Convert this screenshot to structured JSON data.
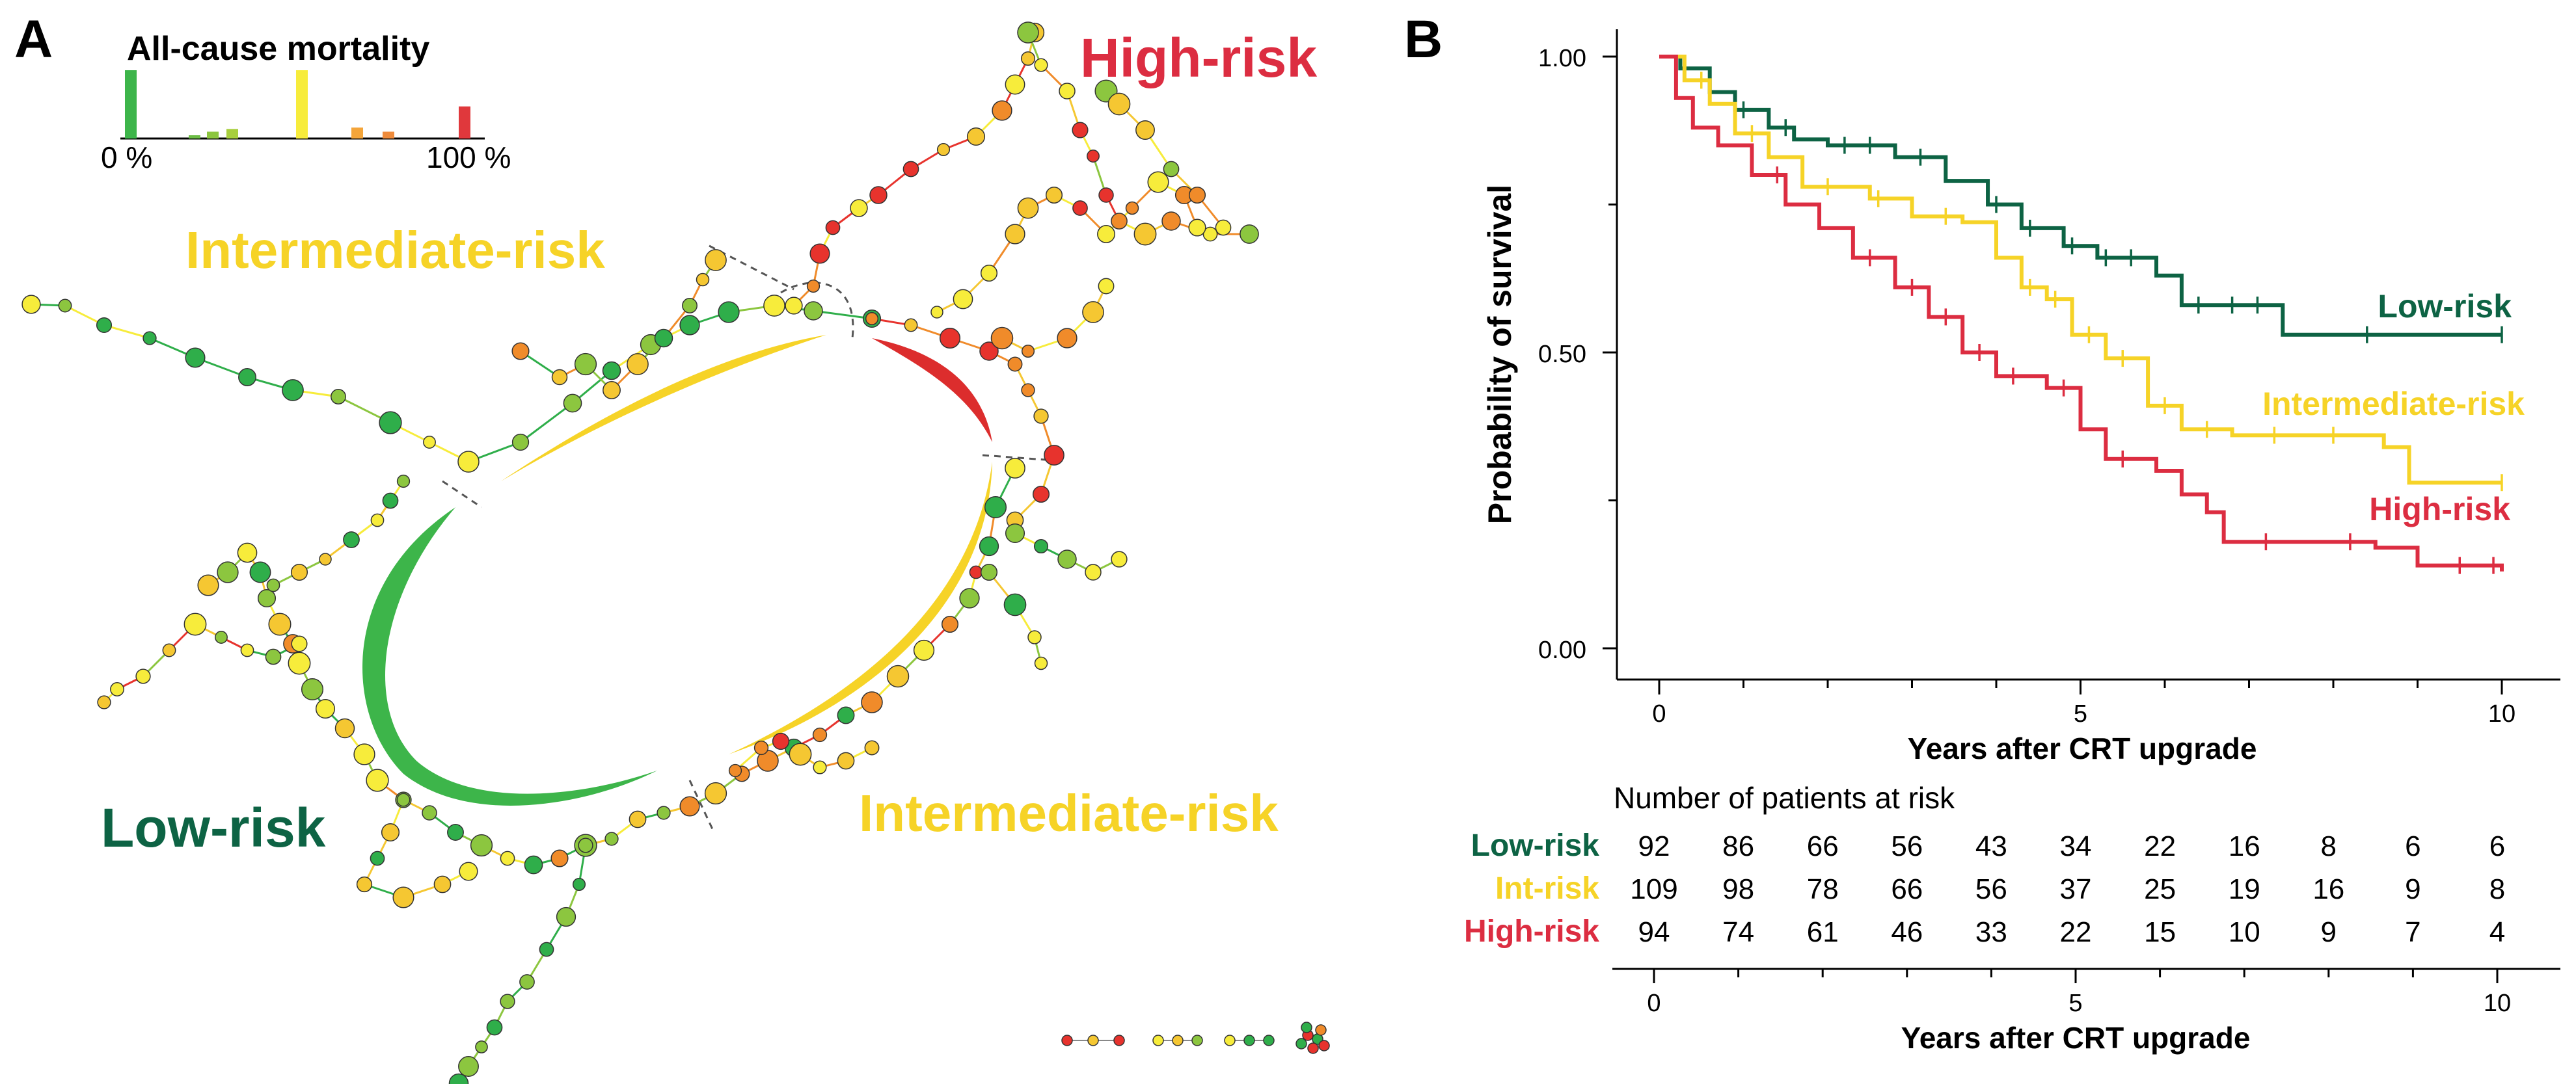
{
  "panel_a": {
    "letter": "A",
    "legend": {
      "title": "All-cause mortality",
      "min_label": "0 %",
      "max_label": "100 %",
      "histogram": [
        {
          "value": 1.0,
          "color": "#3db54a"
        },
        {
          "value": 0.03,
          "color": "#6cbd45"
        },
        {
          "value": 0.1,
          "color": "#8cc63f"
        },
        {
          "value": 0.14,
          "color": "#a8cf3e"
        },
        {
          "value": 1.0,
          "color": "#f7ec3b"
        },
        {
          "value": 0.16,
          "color": "#f4a53a"
        },
        {
          "value": 0.1,
          "color": "#ef8b3b"
        },
        {
          "value": 0.47,
          "color": "#e0383c"
        }
      ]
    },
    "labels": {
      "high": "High-risk",
      "intermediate_top": "Intermediate-risk",
      "intermediate_bottom": "Intermediate-risk",
      "low": "Low-risk"
    },
    "colors": {
      "high": "#dc2d41",
      "intermediate": "#f6d327",
      "low": "#0d6344",
      "arc_low": "#3db54a",
      "arc_intermediate": "#f6d327",
      "arc_high": "#dc2d2d",
      "node_palette": [
        "#2fae4a",
        "#8cc63f",
        "#f7ec3b",
        "#f5c732",
        "#f08b2a",
        "#e7332d"
      ]
    }
  },
  "panel_b": {
    "letter": "B",
    "risk_table_title": "Number of patients at risk",
    "chart_data": {
      "type": "line",
      "xlabel": "Years after CRT upgrade",
      "ylabel": "Probability of survival",
      "xlim": [
        0,
        10
      ],
      "ylim": [
        0,
        1
      ],
      "x_ticks": [
        0,
        5,
        10
      ],
      "y_ticks": [
        "0.00",
        "0.50",
        "1.00"
      ],
      "series": [
        {
          "name": "Low-risk",
          "color": "#0d6344",
          "points": [
            [
              0,
              1.0
            ],
            [
              0.25,
              0.98
            ],
            [
              0.6,
              0.94
            ],
            [
              0.9,
              0.91
            ],
            [
              1.3,
              0.88
            ],
            [
              1.6,
              0.86
            ],
            [
              2.0,
              0.85
            ],
            [
              2.8,
              0.83
            ],
            [
              3.4,
              0.79
            ],
            [
              3.9,
              0.75
            ],
            [
              4.3,
              0.71
            ],
            [
              4.8,
              0.68
            ],
            [
              5.2,
              0.66
            ],
            [
              5.9,
              0.63
            ],
            [
              6.2,
              0.58
            ],
            [
              7.0,
              0.58
            ],
            [
              7.4,
              0.53
            ],
            [
              10.0,
              0.53
            ]
          ],
          "censor_x": [
            1.0,
            1.5,
            2.2,
            2.5,
            3.1,
            4.0,
            4.4,
            4.9,
            5.3,
            5.6,
            6.4,
            6.8,
            7.1,
            8.4,
            10.0
          ]
        },
        {
          "name": "Intermediate-risk",
          "color": "#f6d327",
          "points": [
            [
              0,
              1.0
            ],
            [
              0.3,
              0.96
            ],
            [
              0.6,
              0.92
            ],
            [
              0.9,
              0.87
            ],
            [
              1.3,
              0.83
            ],
            [
              1.7,
              0.78
            ],
            [
              2.5,
              0.76
            ],
            [
              3.0,
              0.73
            ],
            [
              3.6,
              0.72
            ],
            [
              4.0,
              0.66
            ],
            [
              4.3,
              0.61
            ],
            [
              4.6,
              0.59
            ],
            [
              4.9,
              0.53
            ],
            [
              5.3,
              0.49
            ],
            [
              5.8,
              0.41
            ],
            [
              6.2,
              0.37
            ],
            [
              6.8,
              0.36
            ],
            [
              8.6,
              0.34
            ],
            [
              8.9,
              0.28
            ],
            [
              10.0,
              0.28
            ]
          ],
          "censor_x": [
            0.5,
            1.1,
            2.0,
            2.6,
            3.4,
            4.4,
            4.7,
            5.1,
            5.5,
            6.0,
            6.5,
            7.3,
            8.0,
            10.0
          ]
        },
        {
          "name": "High-risk",
          "color": "#dc2d41",
          "points": [
            [
              0,
              1.0
            ],
            [
              0.2,
              0.93
            ],
            [
              0.4,
              0.88
            ],
            [
              0.7,
              0.85
            ],
            [
              1.1,
              0.8
            ],
            [
              1.5,
              0.75
            ],
            [
              1.9,
              0.71
            ],
            [
              2.3,
              0.66
            ],
            [
              2.8,
              0.61
            ],
            [
              3.2,
              0.56
            ],
            [
              3.6,
              0.5
            ],
            [
              4.0,
              0.46
            ],
            [
              4.6,
              0.44
            ],
            [
              5.0,
              0.37
            ],
            [
              5.3,
              0.32
            ],
            [
              5.9,
              0.3
            ],
            [
              6.2,
              0.26
            ],
            [
              6.5,
              0.23
            ],
            [
              6.7,
              0.18
            ],
            [
              8.5,
              0.17
            ],
            [
              9.0,
              0.14
            ],
            [
              10.0,
              0.13
            ]
          ],
          "censor_x": [
            1.4,
            2.5,
            3.0,
            3.4,
            3.8,
            4.2,
            4.8,
            5.5,
            7.2,
            8.2,
            9.5,
            9.9
          ]
        }
      ],
      "annotations": [
        {
          "text": "Low-risk",
          "series": 0
        },
        {
          "text": "Intermediate-risk",
          "series": 1
        },
        {
          "text": "High-risk",
          "series": 2
        }
      ]
    },
    "risk_table": {
      "times": [
        0,
        1,
        2,
        3,
        4,
        5,
        6,
        7,
        8,
        9,
        10
      ],
      "x_ticks": [
        0,
        5,
        10
      ],
      "xlabel": "Years after CRT upgrade",
      "rows": [
        {
          "label": "Low-risk",
          "color": "#0d6344",
          "values": [
            92,
            86,
            66,
            56,
            43,
            34,
            22,
            16,
            8,
            6,
            6
          ]
        },
        {
          "label": "Int-risk",
          "color": "#f6d327",
          "values": [
            109,
            98,
            78,
            66,
            56,
            37,
            25,
            19,
            16,
            9,
            8
          ]
        },
        {
          "label": "High-risk",
          "color": "#dc2d41",
          "values": [
            94,
            74,
            61,
            46,
            33,
            22,
            15,
            10,
            9,
            7,
            4
          ]
        }
      ]
    }
  }
}
